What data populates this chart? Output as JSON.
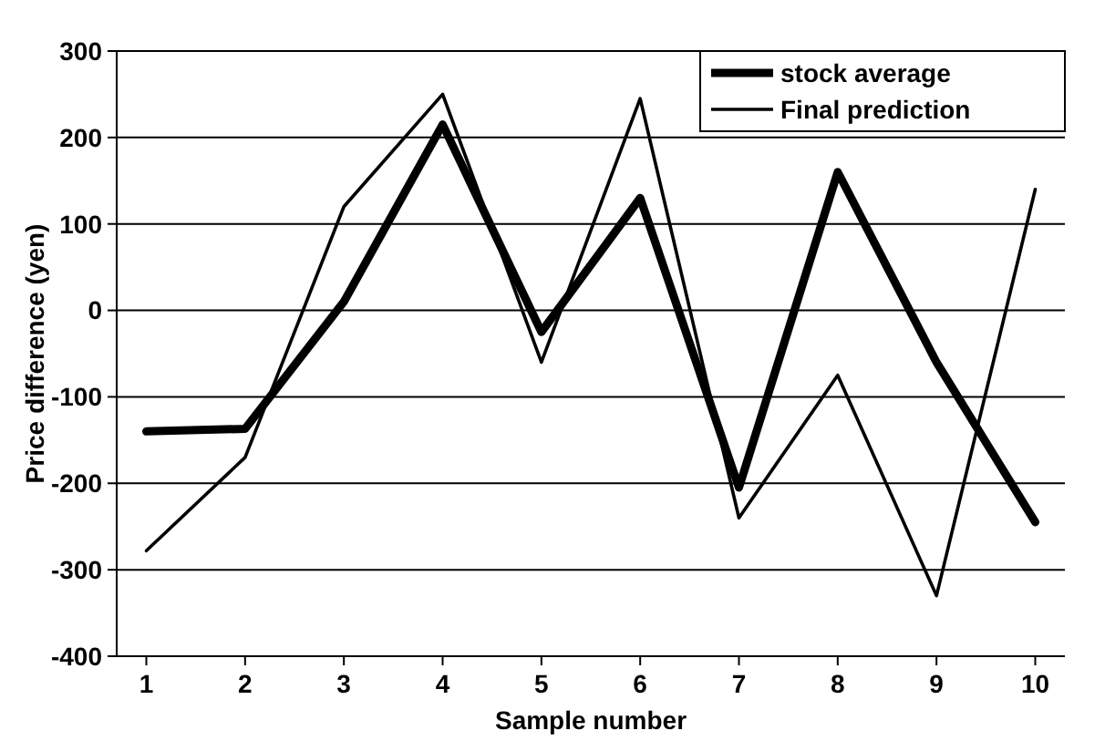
{
  "chart_data": {
    "type": "line",
    "xlabel": "Sample number",
    "ylabel": "Price difference (yen)",
    "categories": [
      "1",
      "2",
      "3",
      "4",
      "5",
      "6",
      "7",
      "8",
      "9",
      "10"
    ],
    "series": [
      {
        "name": "stock average",
        "color": "#000000",
        "values": [
          -140,
          -137,
          10,
          215,
          -25,
          130,
          -205,
          160,
          -60,
          -245
        ]
      },
      {
        "name": "Final prediction",
        "color": "#000000",
        "values": [
          -278,
          -170,
          120,
          250,
          -60,
          245,
          -240,
          -75,
          -330,
          140
        ]
      }
    ],
    "ylim": [
      -400,
      300
    ],
    "yticks": [
      -400,
      -300,
      -200,
      -100,
      0,
      100,
      200,
      300
    ],
    "grid": "y",
    "legend": "top right",
    "marker": "none",
    "line_style": "solid"
  }
}
